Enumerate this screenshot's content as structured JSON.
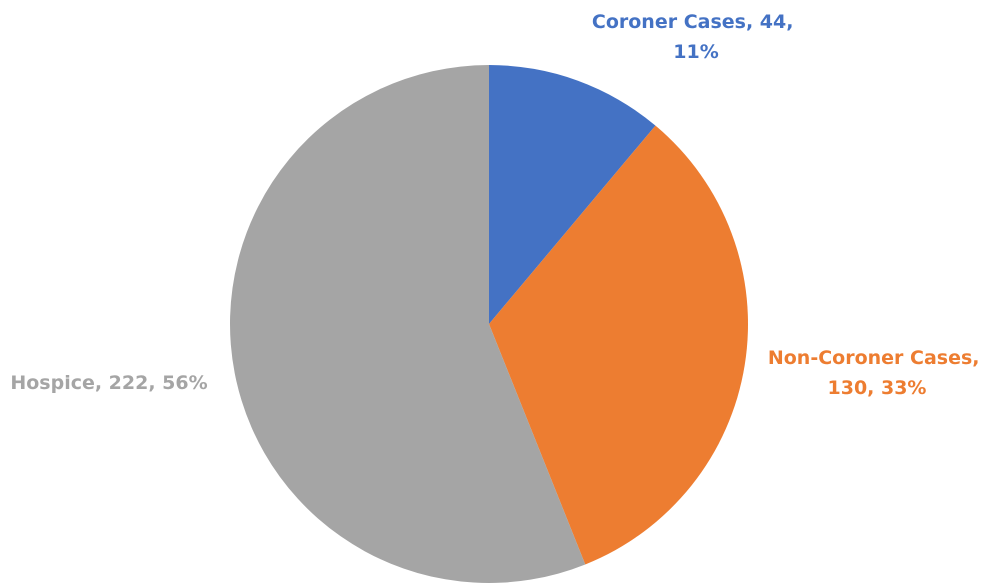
{
  "chart_data": {
    "type": "pie",
    "categories": [
      "Coroner Cases",
      "Non-Coroner Cases",
      "Hospice"
    ],
    "values": [
      44,
      130,
      222
    ],
    "percentages": [
      "11%",
      "33%",
      "56%"
    ],
    "colors": [
      "#4472C4",
      "#ED7D31",
      "#A5A5A5"
    ],
    "start_angle": "12 o'clock",
    "direction": "clockwise",
    "data_labels": [
      {
        "line1": "Coroner Cases, 44,",
        "line2": "11%"
      },
      {
        "line1": "Non-Coroner Cases,",
        "line2": "130, 33%"
      },
      {
        "line1": "Hospice, 222, 56%",
        "line2": ""
      }
    ]
  }
}
